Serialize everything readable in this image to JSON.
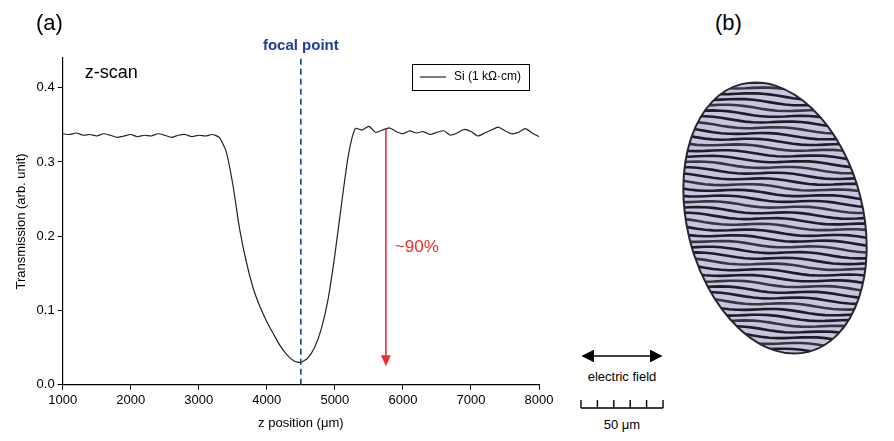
{
  "chart_data": {
    "type": "line",
    "panel_label": "(a)",
    "title": "z-scan",
    "x_label": "z position (μm)",
    "y_label": "Transmission (arb. unit)",
    "x": [
      1000,
      1100,
      1200,
      1300,
      1400,
      1500,
      1600,
      1700,
      1800,
      1900,
      2000,
      2100,
      2200,
      2300,
      2400,
      2500,
      2600,
      2700,
      2800,
      2900,
      3000,
      3100,
      3200,
      3300,
      3400,
      3500,
      3600,
      3700,
      3800,
      3900,
      4000,
      4100,
      4200,
      4300,
      4400,
      4500,
      4600,
      4700,
      4800,
      4900,
      5000,
      5100,
      5200,
      5300,
      5400,
      5500,
      5600,
      5700,
      5800,
      5900,
      6000,
      6100,
      6200,
      6300,
      6400,
      6500,
      6600,
      6700,
      6800,
      6900,
      7000,
      7100,
      7200,
      7300,
      7400,
      7500,
      7600,
      7700,
      7800,
      7900,
      8000
    ],
    "series": [
      {
        "name": "Si (1 kΩ·cm)",
        "color": "#222222",
        "values": [
          0.338,
          0.337,
          0.339,
          0.336,
          0.337,
          0.335,
          0.338,
          0.336,
          0.333,
          0.335,
          0.337,
          0.334,
          0.336,
          0.335,
          0.338,
          0.336,
          0.333,
          0.336,
          0.337,
          0.334,
          0.336,
          0.335,
          0.337,
          0.333,
          0.315,
          0.27,
          0.21,
          0.165,
          0.13,
          0.105,
          0.085,
          0.068,
          0.052,
          0.04,
          0.032,
          0.03,
          0.036,
          0.05,
          0.075,
          0.115,
          0.175,
          0.245,
          0.31,
          0.345,
          0.343,
          0.348,
          0.34,
          0.343,
          0.346,
          0.341,
          0.338,
          0.342,
          0.339,
          0.341,
          0.337,
          0.34,
          0.342,
          0.336,
          0.339,
          0.344,
          0.341,
          0.335,
          0.339,
          0.343,
          0.347,
          0.342,
          0.338,
          0.34,
          0.345,
          0.339,
          0.334
        ]
      }
    ],
    "xlim": [
      1000,
      8000
    ],
    "xticks": [
      1000,
      2000,
      3000,
      4000,
      5000,
      6000,
      7000,
      8000
    ],
    "ylim": [
      0,
      0.44
    ],
    "yticks": [
      {
        "value": 0,
        "label": "0.0"
      },
      {
        "value": 0.1,
        "label": "0.1"
      },
      {
        "value": 0.2,
        "label": "0.2"
      },
      {
        "value": 0.3,
        "label": "0.3"
      },
      {
        "value": 0.4,
        "label": "0.4"
      }
    ],
    "grid": false,
    "legend": "top-right",
    "annotations": [
      {
        "text": "focal point",
        "x": 4500,
        "color": "#1f3c99",
        "line_style": "dashed"
      },
      {
        "text": "~90%",
        "x": 5750,
        "y_from": 0.345,
        "y_to": 0.025,
        "color": "#e8322a"
      }
    ]
  },
  "image_panel": {
    "panel_label": "(b)",
    "arrow_label": "electric field",
    "scale_bar_label": "50 μm"
  }
}
